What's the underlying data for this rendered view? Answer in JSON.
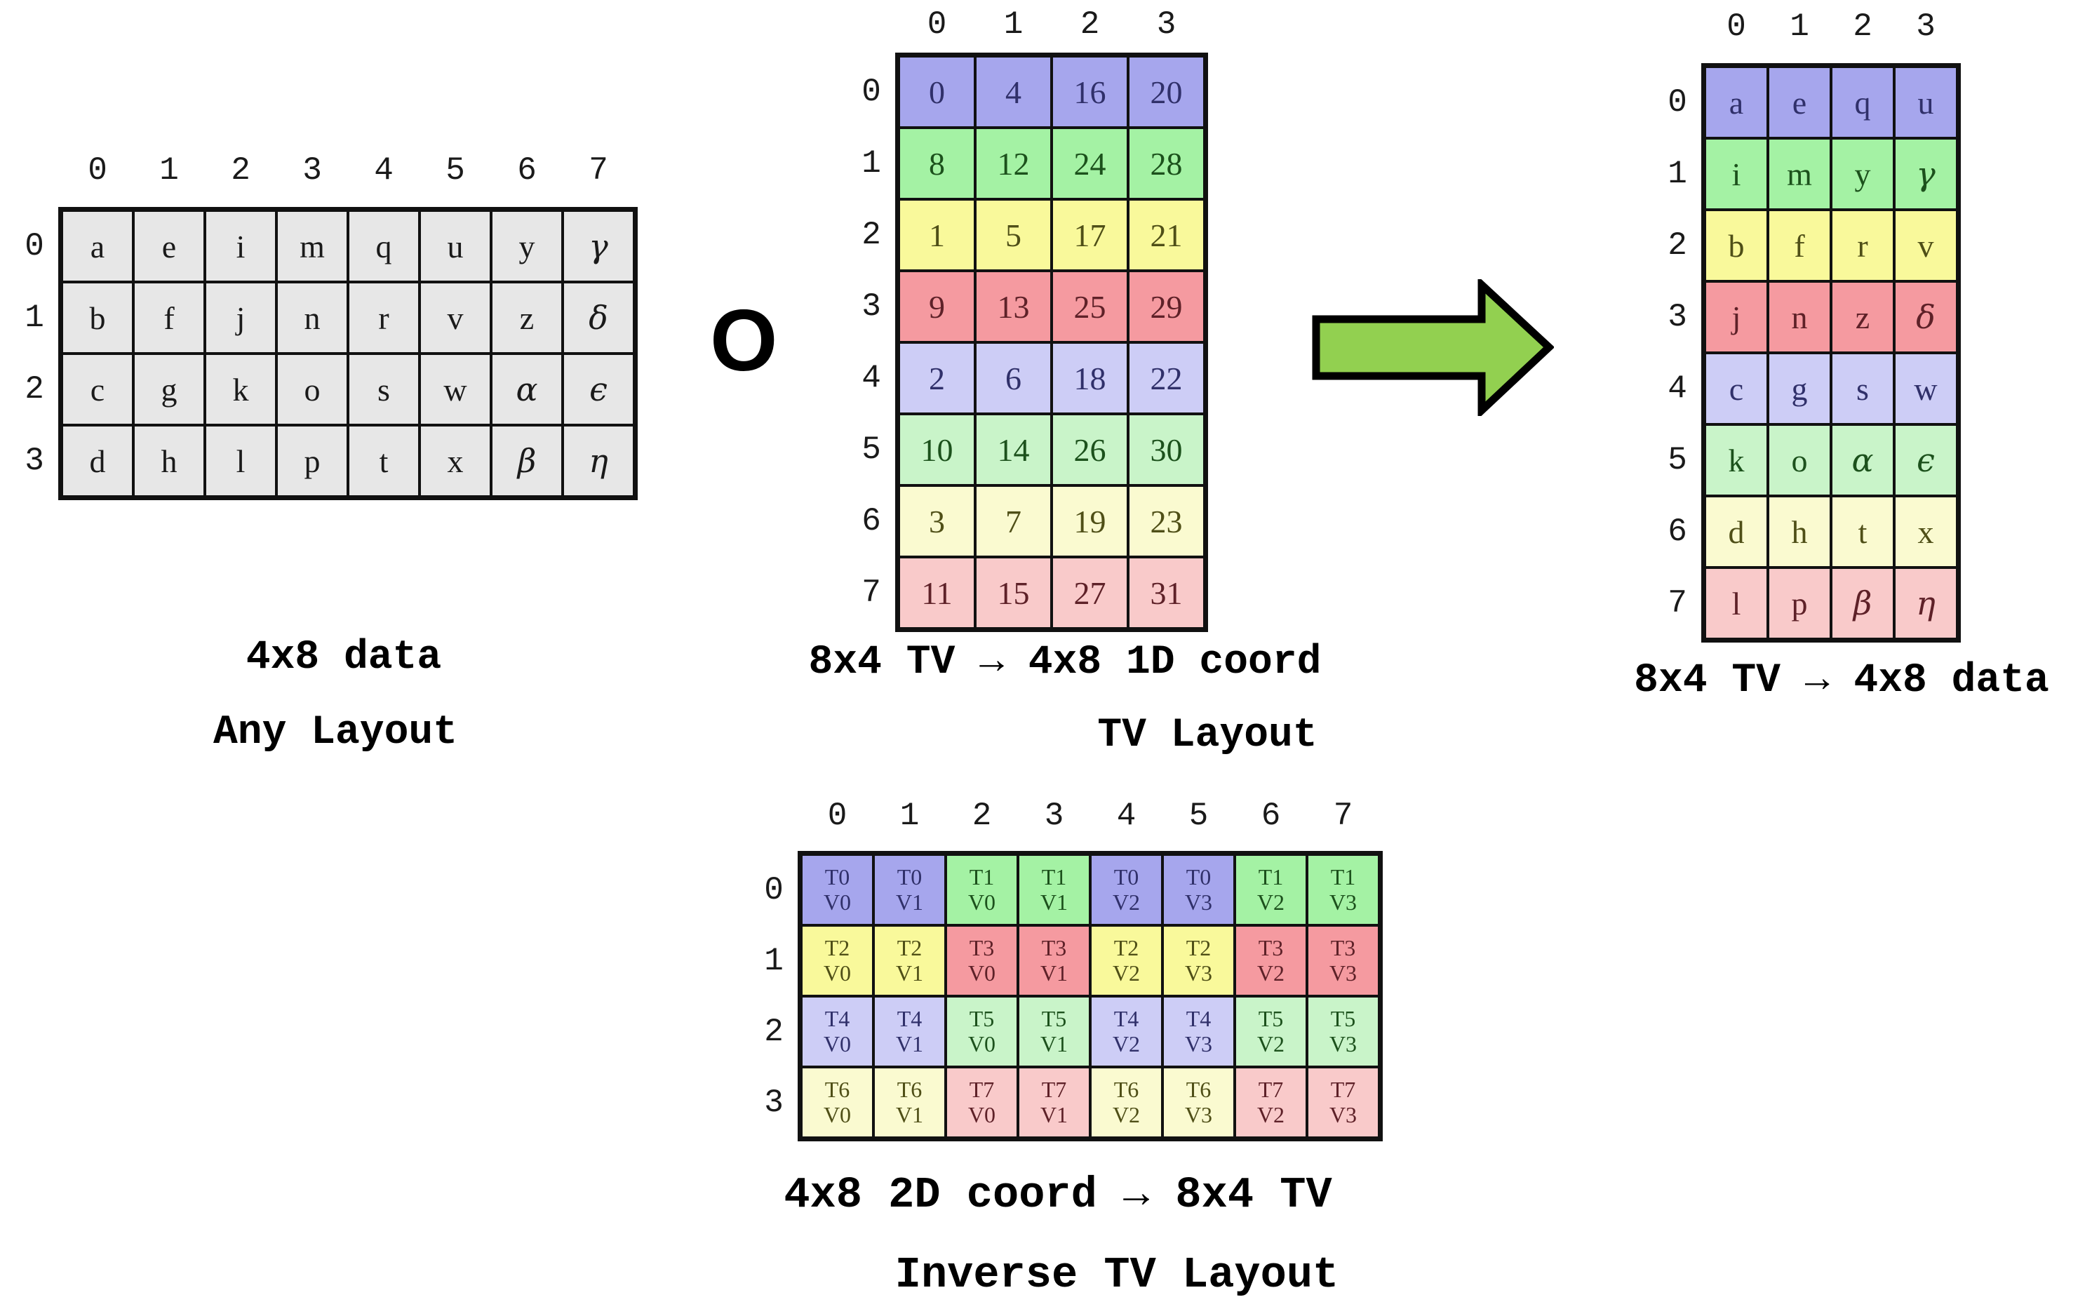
{
  "figure": {
    "compose_operator": "O",
    "arrow": {
      "fill": "#92d050",
      "stroke": "#000000"
    },
    "palette": {
      "gray": "#e7e7e7",
      "blue": "#a6a6ed",
      "green": "#a4f2a4",
      "yellow": "#f9f99b",
      "red": "#f59aa0",
      "blue_light": "#cdcdf6",
      "green_light": "#c9f4c9",
      "yellow_light": "#fafad0",
      "red_light": "#f9caca"
    }
  },
  "captions": {
    "left_line1": "4x8 data",
    "left_line2": "Any Layout",
    "tv_line1": "8x4 TV → 4x8 1D coord",
    "tv_line2": "TV Layout",
    "result": "8x4 TV → 4x8 data",
    "inverse_line1": "4x8 2D coord → 8x4 TV",
    "inverse_line2": "Inverse TV Layout"
  },
  "tables": {
    "left": {
      "col_headers": [
        "0",
        "1",
        "2",
        "3",
        "4",
        "5",
        "6",
        "7"
      ],
      "row_headers": [
        "0",
        "1",
        "2",
        "3"
      ],
      "color": "gray",
      "rows": [
        [
          "a",
          "e",
          "i",
          "m",
          "q",
          "u",
          "y",
          "γ"
        ],
        [
          "b",
          "f",
          "j",
          "n",
          "r",
          "v",
          "z",
          "δ"
        ],
        [
          "c",
          "g",
          "k",
          "o",
          "s",
          "w",
          "α",
          "ϵ"
        ],
        [
          "d",
          "h",
          "l",
          "p",
          "t",
          "x",
          "β",
          "η"
        ]
      ]
    },
    "tv": {
      "col_headers": [
        "0",
        "1",
        "2",
        "3"
      ],
      "row_headers": [
        "0",
        "1",
        "2",
        "3",
        "4",
        "5",
        "6",
        "7"
      ],
      "row_colors": [
        "blue",
        "green",
        "yellow",
        "red",
        "blue_light",
        "green_light",
        "yellow_light",
        "red_light"
      ],
      "rows": [
        [
          "0",
          "4",
          "16",
          "20"
        ],
        [
          "8",
          "12",
          "24",
          "28"
        ],
        [
          "1",
          "5",
          "17",
          "21"
        ],
        [
          "9",
          "13",
          "25",
          "29"
        ],
        [
          "2",
          "6",
          "18",
          "22"
        ],
        [
          "10",
          "14",
          "26",
          "30"
        ],
        [
          "3",
          "7",
          "19",
          "23"
        ],
        [
          "11",
          "15",
          "27",
          "31"
        ]
      ]
    },
    "result": {
      "col_headers": [
        "0",
        "1",
        "2",
        "3"
      ],
      "row_headers": [
        "0",
        "1",
        "2",
        "3",
        "4",
        "5",
        "6",
        "7"
      ],
      "row_colors": [
        "blue",
        "green",
        "yellow",
        "red",
        "blue_light",
        "green_light",
        "yellow_light",
        "red_light"
      ],
      "rows": [
        [
          "a",
          "e",
          "q",
          "u"
        ],
        [
          "i",
          "m",
          "y",
          "γ"
        ],
        [
          "b",
          "f",
          "r",
          "v"
        ],
        [
          "j",
          "n",
          "z",
          "δ"
        ],
        [
          "c",
          "g",
          "s",
          "w"
        ],
        [
          "k",
          "o",
          "α",
          "ϵ"
        ],
        [
          "d",
          "h",
          "t",
          "x"
        ],
        [
          "l",
          "p",
          "β",
          "η"
        ]
      ]
    },
    "inverse": {
      "col_headers": [
        "0",
        "1",
        "2",
        "3",
        "4",
        "5",
        "6",
        "7"
      ],
      "row_headers": [
        "0",
        "1",
        "2",
        "3"
      ],
      "cell_colors": [
        [
          "blue",
          "blue",
          "green",
          "green",
          "blue",
          "blue",
          "green",
          "green"
        ],
        [
          "yellow",
          "yellow",
          "red",
          "red",
          "yellow",
          "yellow",
          "red",
          "red"
        ],
        [
          "blue_light",
          "blue_light",
          "green_light",
          "green_light",
          "blue_light",
          "blue_light",
          "green_light",
          "green_light"
        ],
        [
          "yellow_light",
          "yellow_light",
          "red_light",
          "red_light",
          "yellow_light",
          "yellow_light",
          "red_light",
          "red_light"
        ]
      ],
      "rows": [
        [
          {
            "t": "T0",
            "v": "V0"
          },
          {
            "t": "T0",
            "v": "V1"
          },
          {
            "t": "T1",
            "v": "V0"
          },
          {
            "t": "T1",
            "v": "V1"
          },
          {
            "t": "T0",
            "v": "V2"
          },
          {
            "t": "T0",
            "v": "V3"
          },
          {
            "t": "T1",
            "v": "V2"
          },
          {
            "t": "T1",
            "v": "V3"
          }
        ],
        [
          {
            "t": "T2",
            "v": "V0"
          },
          {
            "t": "T2",
            "v": "V1"
          },
          {
            "t": "T3",
            "v": "V0"
          },
          {
            "t": "T3",
            "v": "V1"
          },
          {
            "t": "T2",
            "v": "V2"
          },
          {
            "t": "T2",
            "v": "V3"
          },
          {
            "t": "T3",
            "v": "V2"
          },
          {
            "t": "T3",
            "v": "V3"
          }
        ],
        [
          {
            "t": "T4",
            "v": "V0"
          },
          {
            "t": "T4",
            "v": "V1"
          },
          {
            "t": "T5",
            "v": "V0"
          },
          {
            "t": "T5",
            "v": "V1"
          },
          {
            "t": "T4",
            "v": "V2"
          },
          {
            "t": "T4",
            "v": "V3"
          },
          {
            "t": "T5",
            "v": "V2"
          },
          {
            "t": "T5",
            "v": "V3"
          }
        ],
        [
          {
            "t": "T6",
            "v": "V0"
          },
          {
            "t": "T6",
            "v": "V1"
          },
          {
            "t": "T7",
            "v": "V0"
          },
          {
            "t": "T7",
            "v": "V1"
          },
          {
            "t": "T6",
            "v": "V2"
          },
          {
            "t": "T6",
            "v": "V3"
          },
          {
            "t": "T7",
            "v": "V2"
          },
          {
            "t": "T7",
            "v": "V3"
          }
        ]
      ]
    }
  }
}
